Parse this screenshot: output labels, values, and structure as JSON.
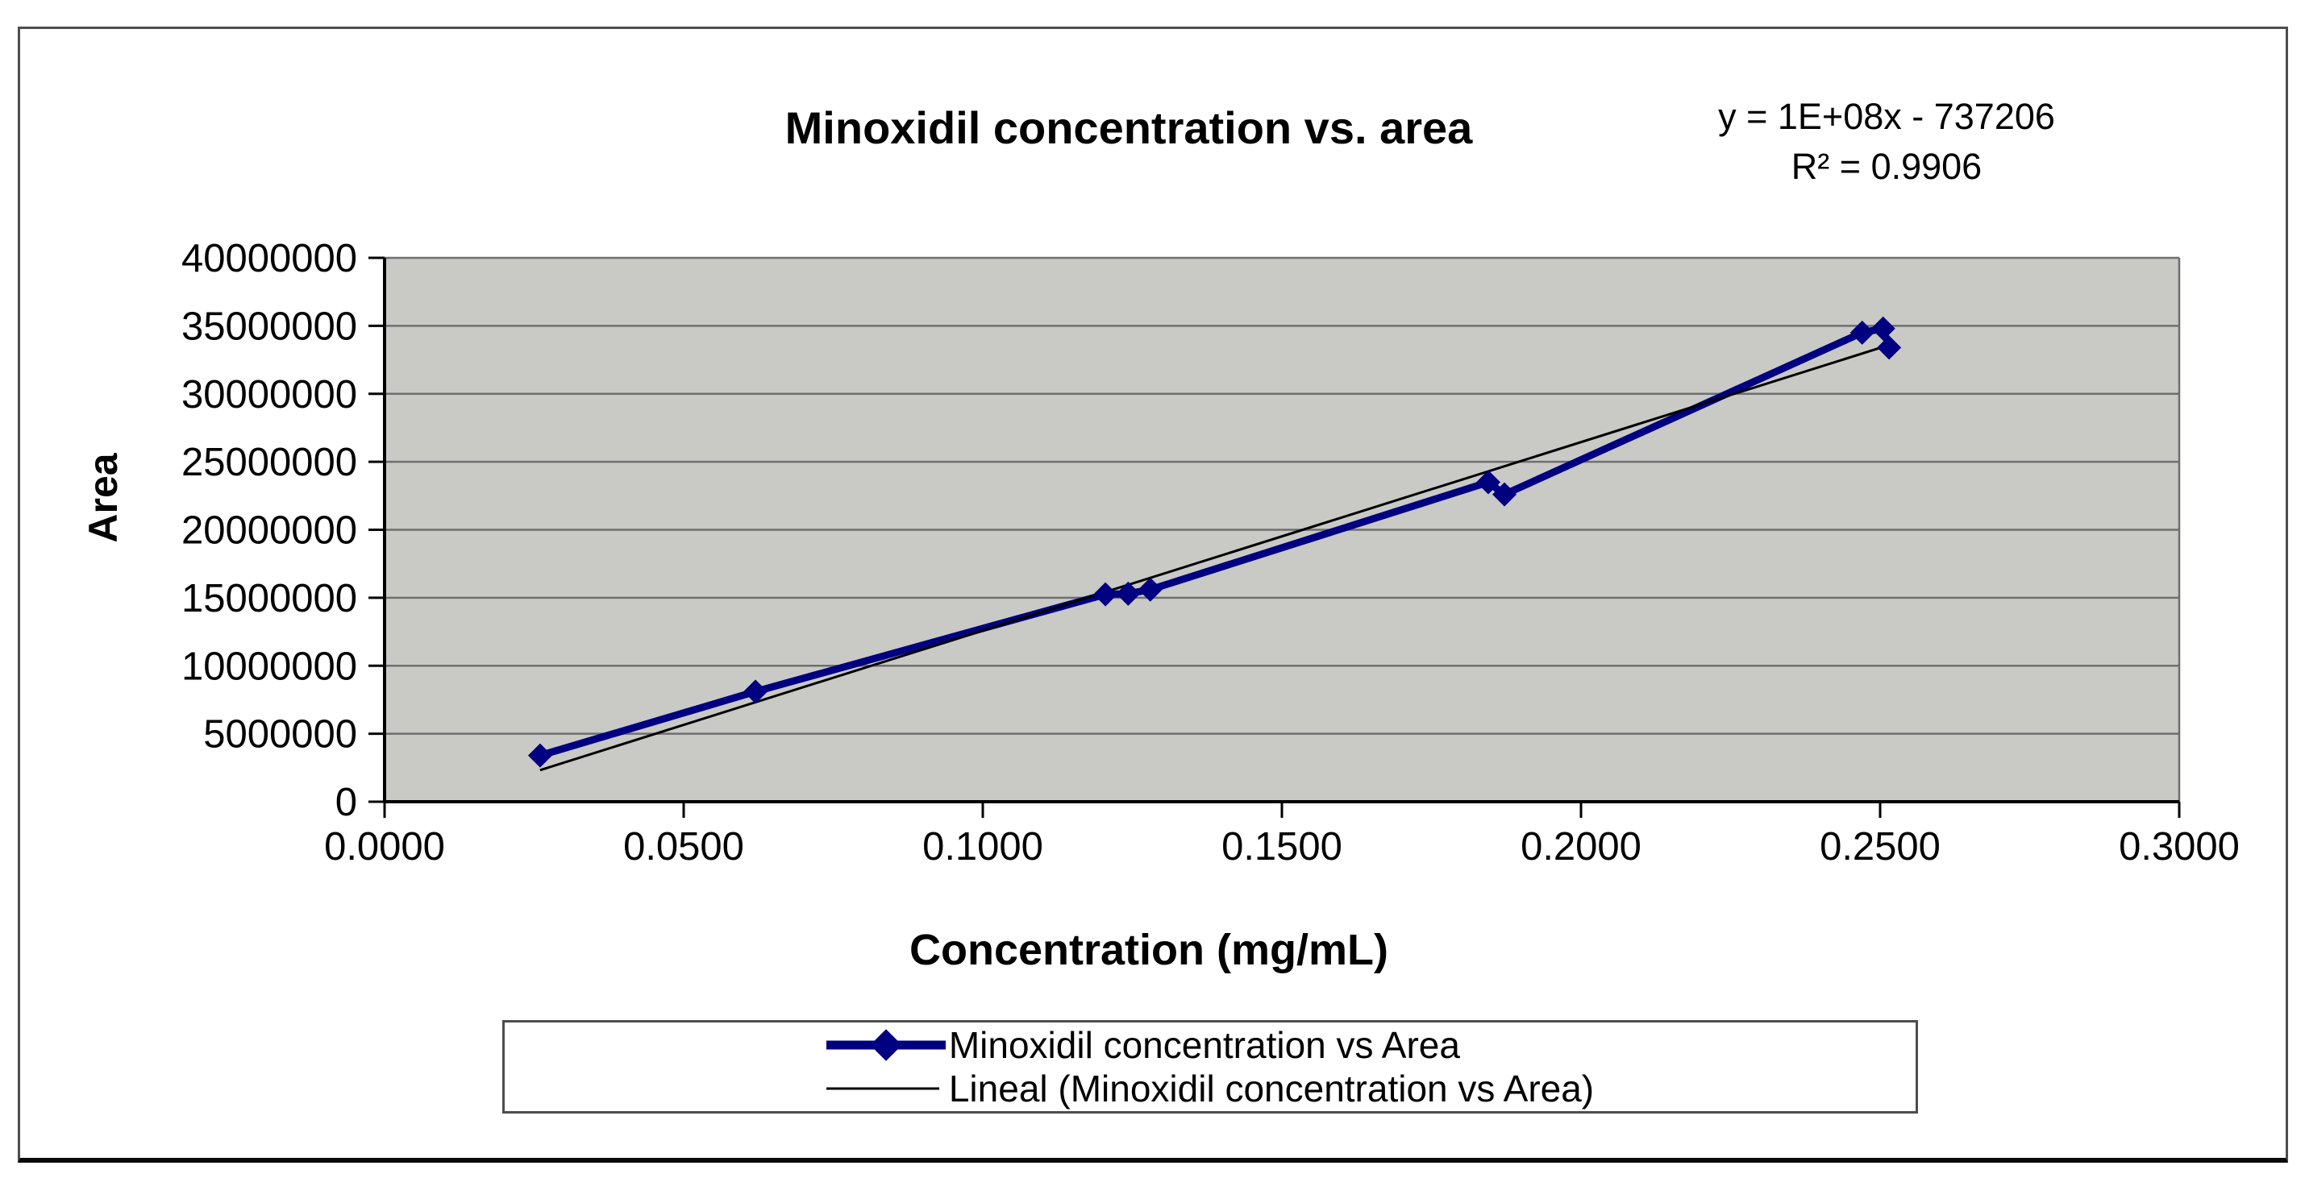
{
  "chart_data": {
    "type": "line",
    "title": "Minoxidil concentration vs. area",
    "equation": "y = 1E+08x - 737206",
    "r_squared": "R² = 0.9906",
    "xlabel": "Concentration (mg/mL)",
    "ylabel": "Area",
    "xlim": [
      0,
      0.3
    ],
    "ylim": [
      0,
      40000000
    ],
    "grid": "horizontal-major-only",
    "legend_position": "bottom-center",
    "plot_bg": "#c9c9c6",
    "gridline_color": "#6f6f6f",
    "axis_color": "#000000",
    "x_ticks": [
      {
        "value": 0.0,
        "label": "0.0000"
      },
      {
        "value": 0.05,
        "label": "0.0500"
      },
      {
        "value": 0.1,
        "label": "0.1000"
      },
      {
        "value": 0.15,
        "label": "0.1500"
      },
      {
        "value": 0.2,
        "label": "0.2000"
      },
      {
        "value": 0.25,
        "label": "0.2500"
      },
      {
        "value": 0.3,
        "label": "0.3000"
      }
    ],
    "y_ticks": [
      {
        "value": 0,
        "label": "0"
      },
      {
        "value": 5000000,
        "label": "5000000"
      },
      {
        "value": 10000000,
        "label": "10000000"
      },
      {
        "value": 15000000,
        "label": "15000000"
      },
      {
        "value": 20000000,
        "label": "20000000"
      },
      {
        "value": 25000000,
        "label": "25000000"
      },
      {
        "value": 30000000,
        "label": "30000000"
      },
      {
        "value": 35000000,
        "label": "35000000"
      },
      {
        "value": 40000000,
        "label": "40000000"
      }
    ],
    "series": [
      {
        "name": "Minoxidil concentration vs Area",
        "color": "#000080",
        "marker": "diamond",
        "line_style": "thick",
        "points": [
          [
            0.026,
            3400000
          ],
          [
            0.062,
            8100000
          ],
          [
            0.1205,
            15250000
          ],
          [
            0.1243,
            15300000
          ],
          [
            0.128,
            15600000
          ],
          [
            0.1845,
            23500000
          ],
          [
            0.1872,
            22600000
          ],
          [
            0.247,
            34500000
          ],
          [
            0.2505,
            34800000
          ],
          [
            0.2515,
            33400000
          ]
        ]
      },
      {
        "name": "Lineal (Minoxidil concentration vs Area)",
        "color": "#000000",
        "line_style": "thin",
        "style": "linear-trendline"
      }
    ]
  }
}
